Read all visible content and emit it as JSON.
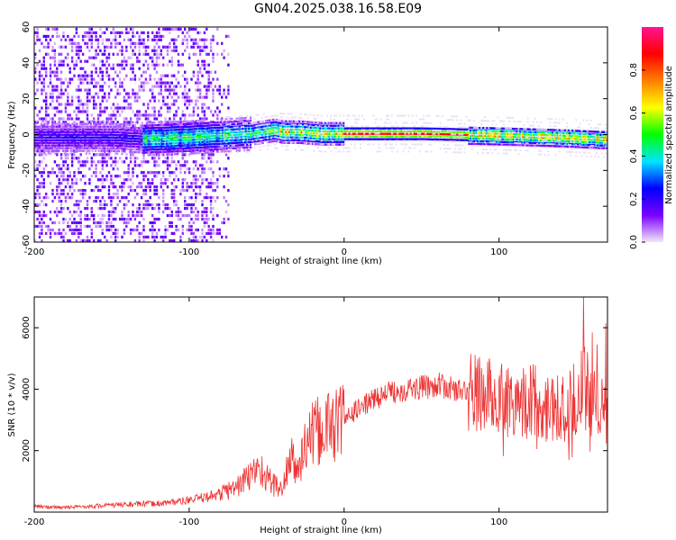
{
  "title": "GN04.2025.038.16.58.E09",
  "chart_data": [
    {
      "type": "heatmap",
      "xlabel": "Height of straight line (km)",
      "ylabel": "Frequency (Hz)",
      "xlim": [
        -200,
        170
      ],
      "ylim": [
        -60,
        60
      ],
      "xticks": [
        -200,
        -100,
        0,
        100
      ],
      "yticks": [
        -60,
        -40,
        -20,
        0,
        20,
        40,
        60
      ],
      "grid": false,
      "ridge": {
        "x": [
          -200,
          -150,
          -130,
          -100,
          -80,
          -60,
          -45,
          -40,
          -30,
          -15,
          0,
          50,
          100,
          140,
          165
        ],
        "y": [
          -2,
          -2,
          -3,
          -2,
          -1,
          0,
          2,
          1,
          1,
          0,
          0,
          0,
          -1,
          -2,
          -3
        ]
      },
      "colorbar": {
        "label": "Normalized spectral amplitude",
        "ticks": [
          0.0,
          0.2,
          0.4,
          0.6,
          0.8
        ],
        "range": [
          0,
          1
        ],
        "colors": [
          "#f3e6fb",
          "#7a00ff",
          "#0000ff",
          "#00e5ff",
          "#00ff00",
          "#ffff00",
          "#ff7f00",
          "#ff0000",
          "#ff1493"
        ]
      }
    },
    {
      "type": "line",
      "xlabel": "Height of straight line (km)",
      "ylabel": "SNR (10 * v/v)",
      "xlim": [
        -200,
        170
      ],
      "ylim": [
        0,
        7000
      ],
      "xticks": [
        -200,
        -100,
        0,
        100
      ],
      "yticks": [
        2000,
        4000,
        6000
      ],
      "grid": false,
      "color": "#ee3333",
      "series": [
        {
          "x": [
            -200,
            -180,
            -160,
            -140,
            -120,
            -100,
            -90,
            -80,
            -70,
            -60,
            -55,
            -50,
            -45,
            -40,
            -35,
            -30,
            -25,
            -20,
            -10,
            0,
            10,
            20,
            30,
            40,
            50,
            60,
            70,
            80,
            90,
            100,
            110,
            120,
            130,
            140,
            150,
            155,
            160,
            165,
            170
          ],
          "y": [
            180,
            150,
            200,
            250,
            280,
            380,
            480,
            600,
            800,
            1200,
            1500,
            1100,
            900,
            700,
            1800,
            1300,
            2200,
            2500,
            2800,
            3000,
            3400,
            3700,
            3900,
            4000,
            4050,
            4150,
            4000,
            3900,
            3800,
            3700,
            3650,
            3650,
            3500,
            3400,
            3700,
            4200,
            3500,
            3200,
            3300
          ]
        }
      ]
    }
  ]
}
